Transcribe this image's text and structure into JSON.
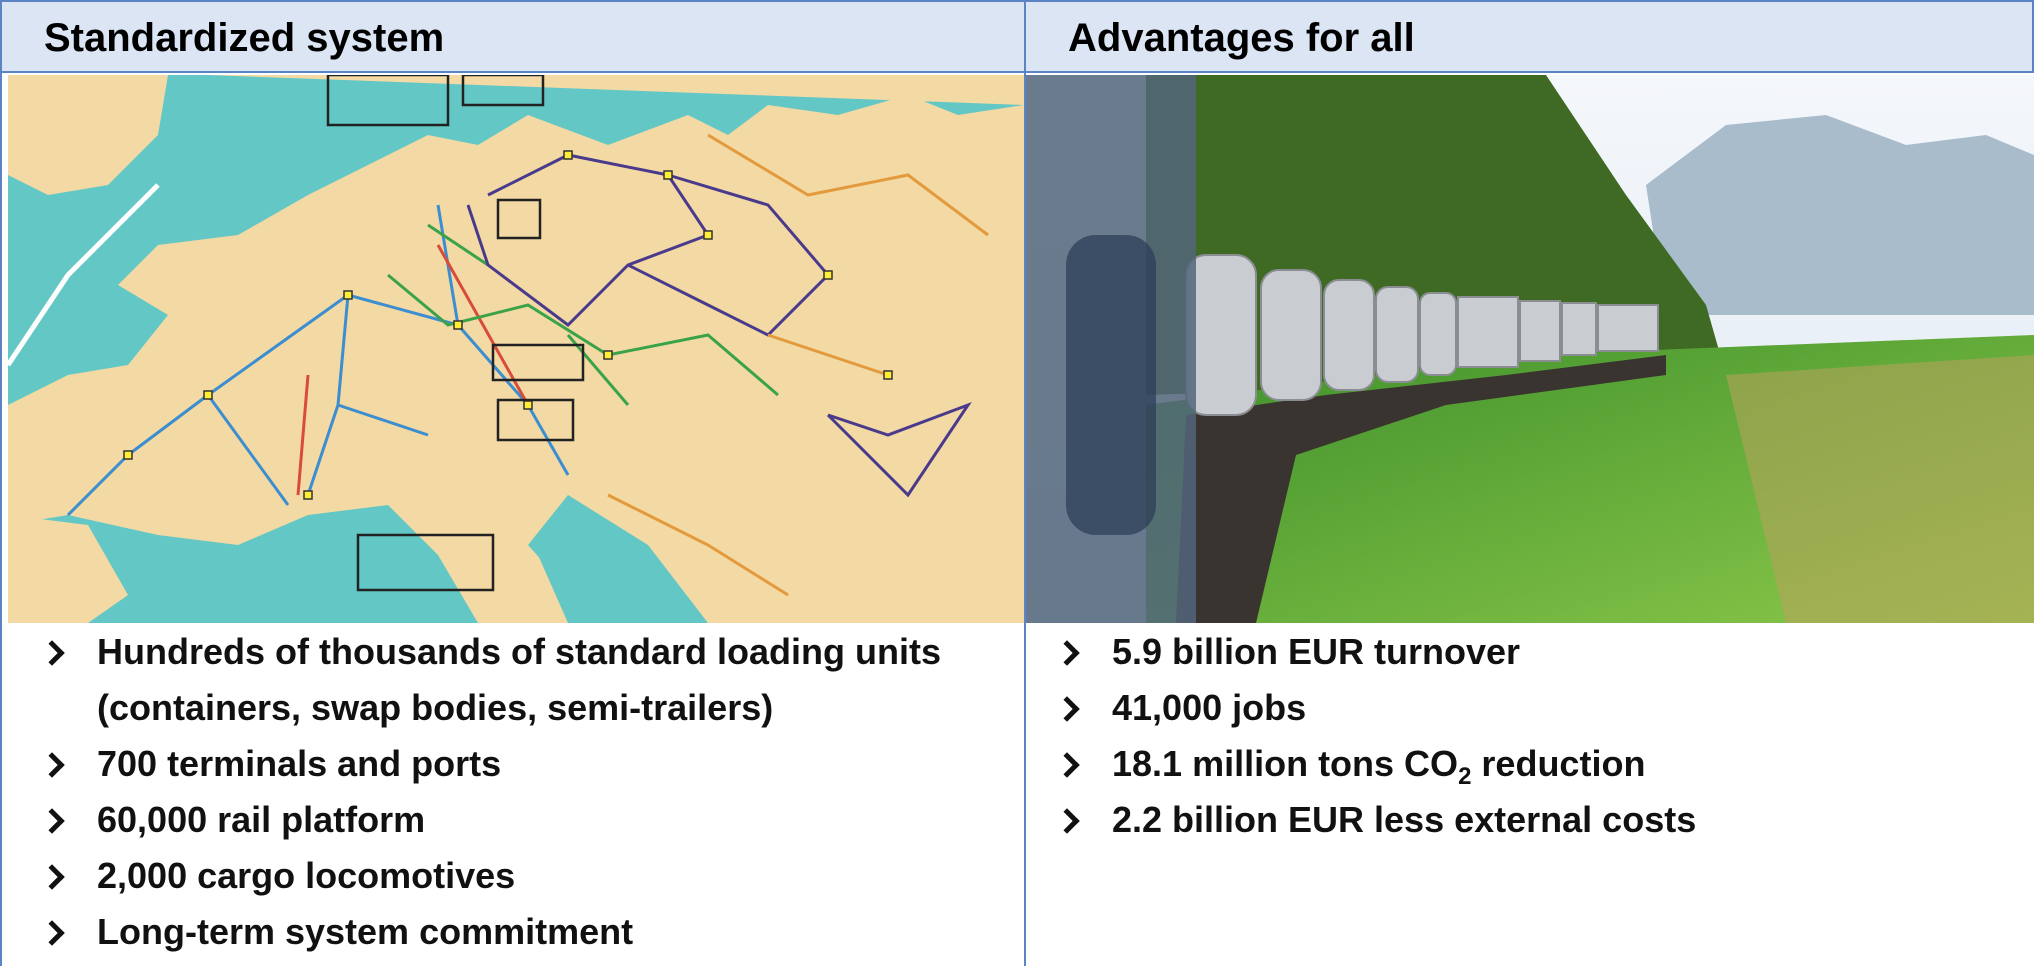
{
  "left": {
    "title": "Standardized system",
    "bullets": [
      "Hundreds of thousands of standard loading units (containers, swap bodies, semi-trailers)",
      "700 terminals and ports",
      "60,000 rail platform",
      "2,000 cargo locomotives",
      "Long-term system commitment"
    ]
  },
  "right": {
    "title": "Advantages for all",
    "bullets": [
      "5.9 billion EUR turnover",
      "41,000 jobs",
      {
        "before": "18.1 million tons CO",
        "sub": "2",
        "after": " reduction"
      },
      "2.2 billion EUR less external costs"
    ]
  }
}
